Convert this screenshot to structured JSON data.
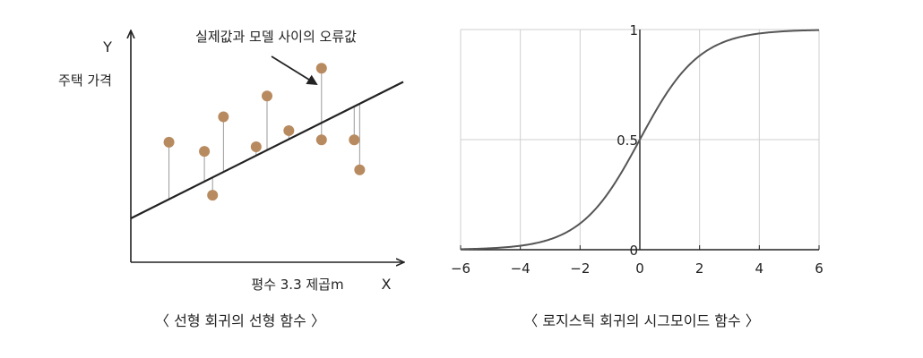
{
  "chart_data": [
    {
      "type": "scatter",
      "ylabel": "Y",
      "ylabel_desc": "주택 가격",
      "xlabel": "X",
      "xlabel_desc": "평수 3.3 제곱m",
      "annotation": "실제값과 모델 사이의 오류값",
      "caption": "〈 선형 회귀의 선형 함수 〉",
      "xlim": [
        0,
        10
      ],
      "ylim": [
        0,
        10
      ],
      "regression_line": {
        "intercept": 1.9,
        "slope": 0.591
      },
      "points": [
        {
          "x": 1.4,
          "y": 5.2
        },
        {
          "x": 2.7,
          "y": 4.8
        },
        {
          "x": 3.0,
          "y": 2.9
        },
        {
          "x": 3.4,
          "y": 6.3
        },
        {
          "x": 4.6,
          "y": 5.0
        },
        {
          "x": 5.0,
          "y": 7.2
        },
        {
          "x": 5.8,
          "y": 5.7
        },
        {
          "x": 7.0,
          "y": 5.3
        },
        {
          "x": 7.0,
          "y": 8.4
        },
        {
          "x": 8.2,
          "y": 5.3
        },
        {
          "x": 8.4,
          "y": 4.0
        }
      ],
      "point_color": "#b88a5f",
      "line_color": "#222222",
      "grid": false
    },
    {
      "type": "line",
      "function": "sigmoid",
      "caption": "〈 로지스틱 회귀의 시그모이드 함수 〉",
      "xlim": [
        -6,
        6
      ],
      "ylim": [
        0,
        1
      ],
      "x_ticks": [
        -6,
        -4,
        -2,
        0,
        2,
        4,
        6
      ],
      "x_tick_labels": [
        "−6",
        "−4",
        "−2",
        "0",
        "2",
        "4",
        "6"
      ],
      "y_ticks": [
        0,
        0.5,
        1
      ],
      "y_tick_labels": [
        "0",
        "0.5",
        "1"
      ],
      "grid": true,
      "line_color": "#555555"
    }
  ]
}
